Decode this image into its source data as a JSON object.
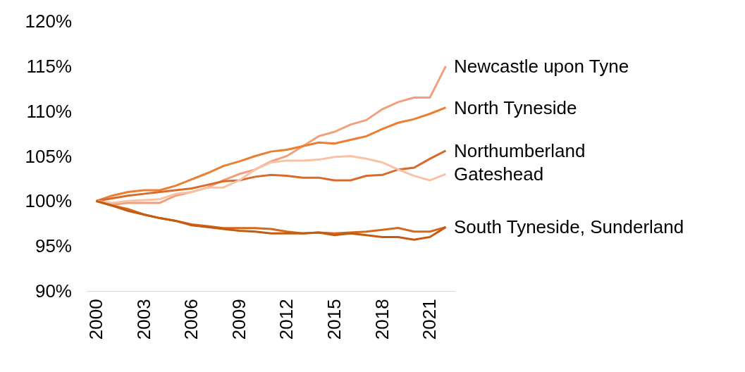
{
  "chart_data": {
    "type": "line",
    "x": [
      2000,
      2001,
      2002,
      2003,
      2004,
      2005,
      2006,
      2007,
      2008,
      2009,
      2010,
      2011,
      2012,
      2013,
      2014,
      2015,
      2016,
      2017,
      2018,
      2019,
      2020,
      2021,
      2022
    ],
    "series": [
      {
        "name": "Newcastle upon Tyne",
        "color": "#f2a07b",
        "values": [
          100,
          99.6,
          99.8,
          99.8,
          99.8,
          100.6,
          101,
          101.5,
          102.3,
          103,
          103.5,
          104.4,
          105,
          106.1,
          107.2,
          107.7,
          108.5,
          109,
          110.2,
          111,
          111.5,
          111.5,
          115
        ]
      },
      {
        "name": "North Tyneside",
        "color": "#ed7d31",
        "values": [
          100,
          100.6,
          101,
          101.2,
          101.2,
          101.7,
          102.4,
          103.1,
          103.9,
          104.4,
          105,
          105.5,
          105.7,
          106.1,
          106.5,
          106.4,
          106.8,
          107.2,
          108,
          108.7,
          109.1,
          109.7,
          110.4
        ]
      },
      {
        "name": "Northumberland",
        "color": "#d96b2a",
        "values": [
          100,
          100.3,
          100.6,
          100.8,
          101,
          101.2,
          101.4,
          101.8,
          102.2,
          102.3,
          102.7,
          102.9,
          102.8,
          102.6,
          102.6,
          102.3,
          102.3,
          102.8,
          102.9,
          103.5,
          103.7,
          104.7,
          105.6
        ]
      },
      {
        "name": "Gateshead",
        "color": "#f8c2a6",
        "values": [
          100,
          99.8,
          100,
          100.1,
          100.2,
          100.8,
          101,
          101.5,
          101.5,
          102.3,
          103.5,
          104.3,
          104.5,
          104.5,
          104.6,
          104.9,
          105,
          104.7,
          104.3,
          103.5,
          102.8,
          102.3,
          103
        ]
      },
      {
        "color": "#d2691e",
        "values": [
          100,
          99.5,
          99.1,
          98.5,
          98.1,
          97.8,
          97.4,
          97.2,
          97,
          97,
          97,
          96.9,
          96.6,
          96.4,
          96.5,
          96.4,
          96.5,
          96.6,
          96.8,
          97,
          96.6,
          96.6,
          97.1
        ]
      },
      {
        "color": "#c55a11",
        "values": [
          100,
          99.5,
          98.9,
          98.5,
          98.1,
          97.8,
          97.3,
          97.1,
          96.9,
          96.7,
          96.6,
          96.4,
          96.4,
          96.4,
          96.5,
          96.2,
          96.4,
          96.2,
          96,
          96,
          95.7,
          96,
          97.1
        ]
      }
    ],
    "annotations": [
      {
        "text": "South Tyneside, Sunderland",
        "x": 2022,
        "y": 97.1
      }
    ],
    "xlim": [
      1999.4,
      2022.6
    ],
    "xticks": [
      2000,
      2003,
      2006,
      2009,
      2012,
      2015,
      2018,
      2021
    ],
    "ylim": [
      90,
      120
    ],
    "yticks": [
      {
        "value": 90,
        "label": "90%"
      },
      {
        "value": 95,
        "label": "95%"
      },
      {
        "value": 100,
        "label": "100%"
      },
      {
        "value": 105,
        "label": "105%"
      },
      {
        "value": 110,
        "label": "110%"
      },
      {
        "value": 115,
        "label": "115%"
      },
      {
        "value": 120,
        "label": "120%"
      }
    ],
    "grid": false,
    "legend": false,
    "marker": "none",
    "line_style": "solid"
  }
}
